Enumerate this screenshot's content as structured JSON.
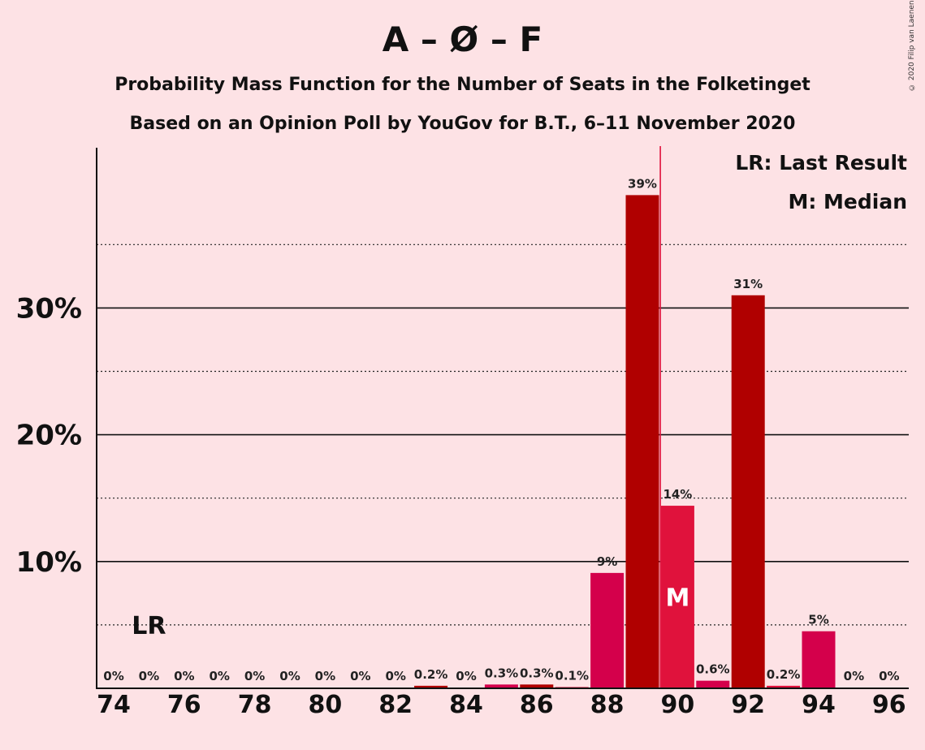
{
  "title": "A – Ø – F",
  "subtitle1": "Probability Mass Function for the Number of Seats in the Folketinget",
  "subtitle2": "Based on an Opinion Poll by YouGov for B.T., 6–11 November 2020",
  "copyright": "© 2020 Filip van Laenen",
  "legend": {
    "last_result": "LR: Last Result",
    "median": "M: Median"
  },
  "markers": {
    "last_result_label": "LR",
    "last_result_seat": 75,
    "median_label": "M",
    "median_seat": 90
  },
  "colors": {
    "background": "#fde2e5",
    "dark_red": "#b00000",
    "red": "#e0123c",
    "crimson": "#d4004b",
    "median_line": "#e0123c",
    "text": "#111111"
  },
  "chart_data": {
    "type": "bar",
    "x": [
      74,
      75,
      76,
      77,
      78,
      79,
      80,
      81,
      82,
      83,
      84,
      85,
      86,
      87,
      88,
      89,
      90,
      91,
      92,
      93,
      94,
      95,
      96
    ],
    "values": [
      0,
      0,
      0,
      0,
      0,
      0,
      0,
      0,
      0,
      0.2,
      0,
      0.3,
      0.3,
      0.1,
      9.1,
      38.9,
      14.4,
      0.6,
      31.0,
      0.2,
      4.5,
      0,
      0
    ],
    "labels": [
      "0%",
      "0%",
      "0%",
      "0%",
      "0%",
      "0%",
      "0%",
      "0%",
      "0%",
      "0.2%",
      "0%",
      "0.3%",
      "0.3%",
      "0.1%",
      "9%",
      "39%",
      "14%",
      "0.6%",
      "31%",
      "0.2%",
      "5%",
      "0%",
      "0%"
    ],
    "bar_colors": [
      "#b00000",
      "#e0123c",
      "#d4004b",
      "#b00000",
      "#e0123c",
      "#d4004b",
      "#b00000",
      "#e0123c",
      "#d4004b",
      "#b00000",
      "#e0123c",
      "#d4004b",
      "#b00000",
      "#e0123c",
      "#d4004b",
      "#b00000",
      "#e0123c",
      "#d4004b",
      "#b00000",
      "#e0123c",
      "#d4004b",
      "#b00000",
      "#e0123c"
    ],
    "x_ticks": [
      "74",
      "76",
      "78",
      "80",
      "82",
      "84",
      "86",
      "88",
      "90",
      "92",
      "94",
      "96"
    ],
    "y_ticks": [
      {
        "value": 10,
        "label": "10%"
      },
      {
        "value": 20,
        "label": "20%"
      },
      {
        "value": 30,
        "label": "30%"
      }
    ],
    "y_minor_gridlines": [
      5,
      15,
      25,
      35
    ],
    "ylim": [
      0,
      42.5
    ],
    "xlabel": "",
    "ylabel": "",
    "grid": true,
    "legend_position": "top-right"
  }
}
